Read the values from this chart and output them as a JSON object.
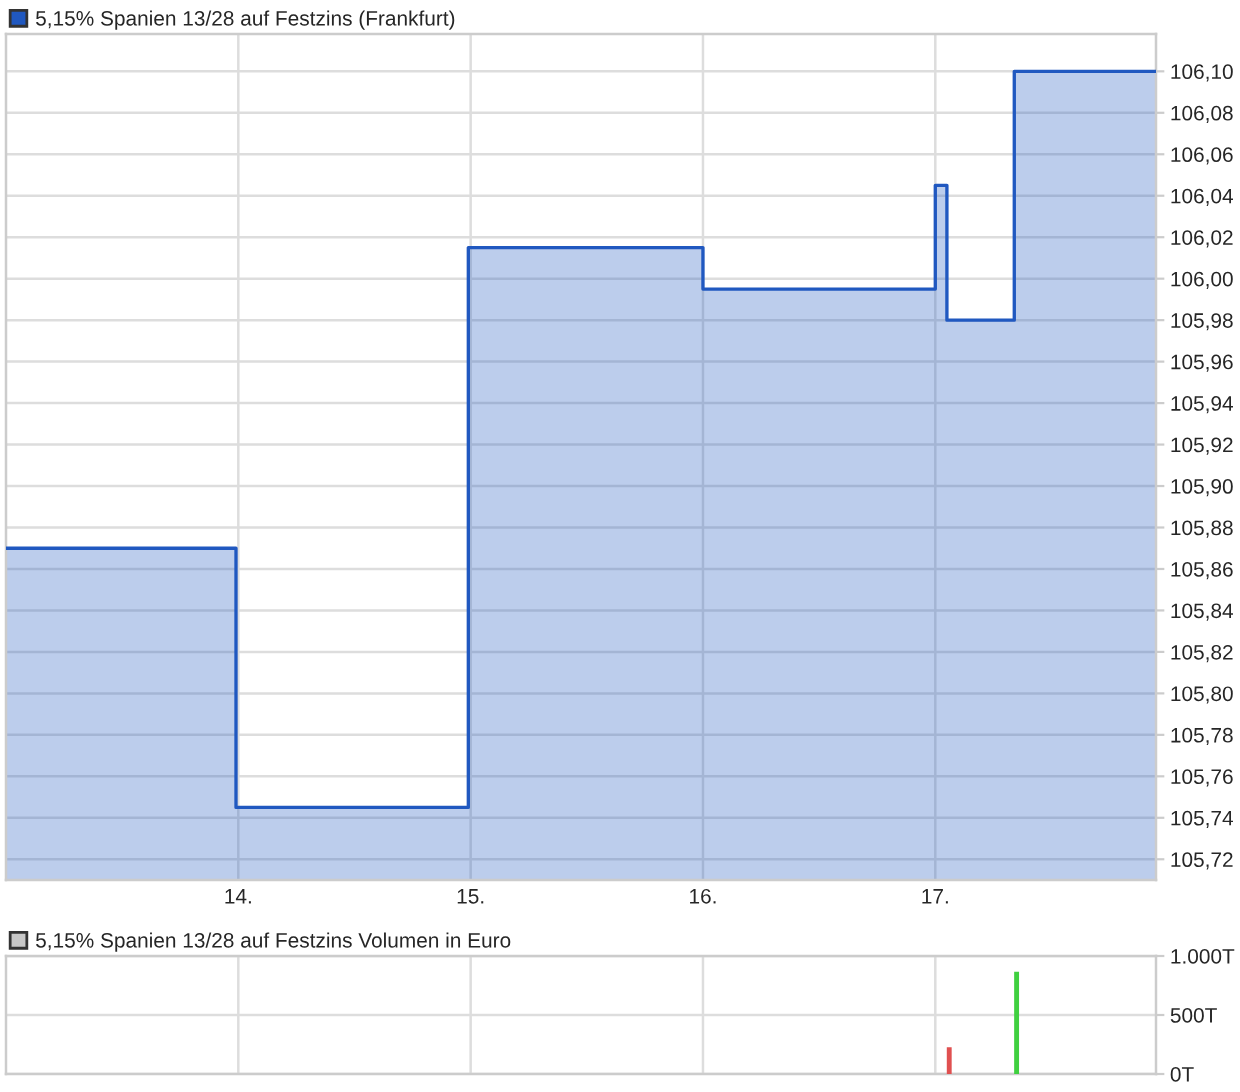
{
  "chart_data": [
    {
      "type": "area",
      "x": [
        13.0,
        13.99,
        13.99,
        14.99,
        14.99,
        16.0,
        16.0,
        17.0,
        17.0,
        17.05,
        17.05,
        17.34,
        17.34,
        17.95
      ],
      "series": [
        {
          "name": "5,15% Spanien 13/28 auf Festzins (Frankfurt)",
          "color": "#2058c0",
          "values": [
            105.87,
            105.87,
            105.745,
            105.745,
            106.015,
            106.015,
            105.995,
            105.995,
            106.045,
            106.045,
            105.98,
            105.98,
            106.1,
            106.1
          ]
        }
      ],
      "xlim": [
        13.0,
        17.95
      ],
      "xticks": [
        {
          "value": 14,
          "label": "14."
        },
        {
          "value": 15,
          "label": "15."
        },
        {
          "value": 16,
          "label": "16."
        },
        {
          "value": 17,
          "label": "17."
        }
      ],
      "ylim": [
        105.71,
        106.118
      ],
      "yticks": [
        {
          "value": 105.72,
          "label": "105,72"
        },
        {
          "value": 105.74,
          "label": "105,74"
        },
        {
          "value": 105.76,
          "label": "105,76"
        },
        {
          "value": 105.78,
          "label": "105,78"
        },
        {
          "value": 105.8,
          "label": "105,80"
        },
        {
          "value": 105.82,
          "label": "105,82"
        },
        {
          "value": 105.84,
          "label": "105,84"
        },
        {
          "value": 105.86,
          "label": "105,86"
        },
        {
          "value": 105.88,
          "label": "105,88"
        },
        {
          "value": 105.9,
          "label": "105,90"
        },
        {
          "value": 105.92,
          "label": "105,92"
        },
        {
          "value": 105.94,
          "label": "105,94"
        },
        {
          "value": 105.96,
          "label": "105,96"
        },
        {
          "value": 105.98,
          "label": "105,98"
        },
        {
          "value": 106.0,
          "label": "106,00"
        },
        {
          "value": 106.02,
          "label": "106,02"
        },
        {
          "value": 106.04,
          "label": "106,04"
        },
        {
          "value": 106.06,
          "label": "106,06"
        },
        {
          "value": 106.08,
          "label": "106,08"
        },
        {
          "value": 106.1,
          "label": "106,10"
        }
      ],
      "grid": true,
      "legend": "top left"
    },
    {
      "type": "bar",
      "x": [
        17.06,
        17.35
      ],
      "series": [
        {
          "name": "5,15% Spanien 13/28 auf Festzins Volumen in Euro",
          "color": "#c8c8c8",
          "colors": [
            "#e05050",
            "#40d040"
          ],
          "values": [
            220,
            860
          ]
        }
      ],
      "xlim": [
        13.0,
        17.95
      ],
      "ylim": [
        0,
        1000
      ],
      "yticks": [
        {
          "value": 0,
          "label": "0T"
        },
        {
          "value": 500,
          "label": "500T"
        },
        {
          "value": 1000,
          "label": "1.000T"
        }
      ],
      "tick_labels": "y",
      "grid": true,
      "legend": "top left"
    }
  ]
}
